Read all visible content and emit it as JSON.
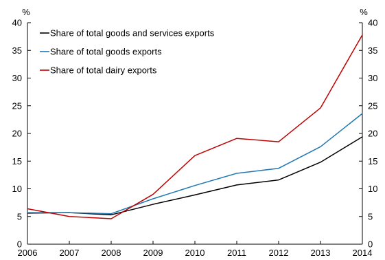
{
  "chart_data": {
    "type": "line",
    "x": [
      2006,
      2007,
      2008,
      2009,
      2010,
      2011,
      2012,
      2013,
      2014
    ],
    "series": [
      {
        "name": "Share of total goods and services exports",
        "color": "#000000",
        "values": [
          5.6,
          5.7,
          5.3,
          7.2,
          8.9,
          10.7,
          11.6,
          14.8,
          19.4
        ]
      },
      {
        "name": "Share of total goods exports",
        "color": "#1f77b4",
        "values": [
          5.7,
          5.7,
          5.5,
          8.2,
          10.6,
          12.8,
          13.7,
          17.6,
          23.6
        ]
      },
      {
        "name": "Share of total dairy exports",
        "color": "#c00000",
        "values": [
          6.4,
          5.0,
          4.6,
          9.0,
          16.0,
          19.1,
          18.5,
          24.6,
          37.8
        ]
      }
    ],
    "y_unit_left": "%",
    "y_unit_right": "%",
    "ylim": [
      0,
      40
    ],
    "y_ticks": [
      0,
      5,
      10,
      15,
      20,
      25,
      30,
      35,
      40
    ],
    "x_ticks": [
      2006,
      2007,
      2008,
      2009,
      2010,
      2011,
      2012,
      2013,
      2014
    ],
    "grid": false,
    "legend_position": "top-left"
  }
}
